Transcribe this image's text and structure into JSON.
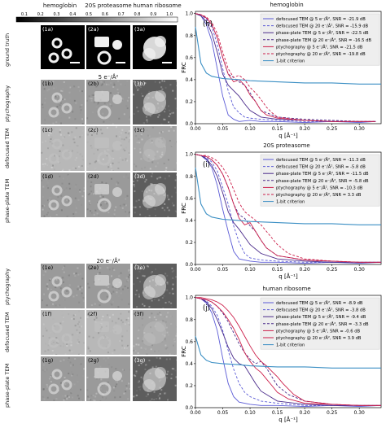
{
  "columns": [
    "hemoglobin",
    "20S proteasome",
    "human ribosome"
  ],
  "scale_ticks": [
    "0.1",
    "0.2",
    "0.3",
    "0.4",
    "0.5",
    "0.6",
    "0.7",
    "0.8",
    "0.9",
    "1.0"
  ],
  "row_labels": {
    "ground_truth": "ground truth",
    "ptychography": "ptychography",
    "defocused": "defocused TEM",
    "phaseplate": "phase-plate TEM"
  },
  "doses": [
    "5  e⁻/Å²",
    "20 e⁻/Å²"
  ],
  "tiles": {
    "gt": [
      "(1a)",
      "(2a)",
      "(3a)"
    ],
    "row_b": [
      "(1b)",
      "(2b)",
      "(3b)"
    ],
    "row_c": [
      "(1c)",
      "(2c)",
      "(3c)"
    ],
    "row_d": [
      "(1d)",
      "(2d)",
      "(3d)"
    ],
    "row_e": [
      "(1e)",
      "(2e)",
      "(3e)"
    ],
    "row_f": [
      "(1f)",
      "(2f)",
      "(3f)"
    ],
    "row_g": [
      "(1g)",
      "(2g)",
      "(3g)"
    ]
  },
  "axis": {
    "ylabel": "FRC",
    "xlabel": "q [Å⁻¹]",
    "xticks": [
      "0.00",
      "0.05",
      "0.10",
      "0.15",
      "0.20",
      "0.25",
      "0.30"
    ],
    "yticks": [
      "0.0",
      "0.2",
      "0.4",
      "0.6",
      "0.8",
      "1.0"
    ]
  },
  "colors": {
    "defocused": "#5b5bd6",
    "phaseplate": "#4a2a8a",
    "ptychography": "#cc1f4a",
    "criterion": "#3b8fc4"
  },
  "chart_data": [
    {
      "type": "line",
      "title": "hemoglobin",
      "panel_label": "(h)",
      "xlabel": "q [Å⁻¹]",
      "ylabel": "FRC",
      "xlim": [
        0,
        0.34
      ],
      "ylim": [
        0,
        1.02
      ],
      "legend": "top-right",
      "grid": false,
      "series": [
        {
          "name": "defocused TEM @ 5  e⁻/Å², SNR = -21.9 dB",
          "style": "defocused",
          "dash": "solid",
          "x": [
            0,
            0.01,
            0.02,
            0.03,
            0.04,
            0.05,
            0.06,
            0.07,
            0.08,
            0.1,
            0.12,
            0.15,
            0.2,
            0.25,
            0.3,
            0.33
          ],
          "y": [
            1.0,
            0.98,
            0.9,
            0.75,
            0.5,
            0.25,
            0.08,
            0.04,
            0.02,
            0.03,
            0.02,
            0.02,
            0.01,
            0.02,
            0.01,
            0.02
          ]
        },
        {
          "name": "defocused TEM @ 20 e⁻/Å², SNR = -15.9 dB",
          "style": "defocused",
          "dash": "dashed",
          "x": [
            0,
            0.01,
            0.02,
            0.03,
            0.04,
            0.05,
            0.06,
            0.07,
            0.08,
            0.09,
            0.1,
            0.12,
            0.15,
            0.2,
            0.25,
            0.3,
            0.33
          ],
          "y": [
            1.0,
            0.99,
            0.95,
            0.88,
            0.72,
            0.5,
            0.3,
            0.15,
            0.1,
            0.06,
            0.05,
            0.04,
            0.03,
            0.02,
            0.02,
            0.02,
            0.02
          ]
        },
        {
          "name": "phase-plate TEM @ 5  e⁻/Å², SNR = -22.5 dB",
          "style": "phaseplate",
          "dash": "solid",
          "x": [
            0,
            0.01,
            0.02,
            0.03,
            0.04,
            0.05,
            0.06,
            0.07,
            0.08,
            0.09,
            0.1,
            0.12,
            0.15,
            0.2,
            0.25,
            0.3,
            0.33
          ],
          "y": [
            1.0,
            0.98,
            0.93,
            0.82,
            0.65,
            0.45,
            0.35,
            0.3,
            0.25,
            0.18,
            0.12,
            0.06,
            0.04,
            0.03,
            0.02,
            0.02,
            0.02
          ]
        },
        {
          "name": "phase-plate TEM @ 20 e⁻/Å², SNR = -16.5 dB",
          "style": "phaseplate",
          "dash": "dashed",
          "x": [
            0,
            0.01,
            0.02,
            0.03,
            0.04,
            0.05,
            0.06,
            0.07,
            0.08,
            0.09,
            0.1,
            0.11,
            0.12,
            0.15,
            0.2,
            0.25,
            0.3,
            0.33
          ],
          "y": [
            1.0,
            0.99,
            0.96,
            0.9,
            0.78,
            0.6,
            0.45,
            0.42,
            0.38,
            0.35,
            0.28,
            0.2,
            0.12,
            0.06,
            0.04,
            0.03,
            0.02,
            0.02
          ]
        },
        {
          "name": "ptychography @ 5  e⁻/Å², SNR = -21.5 dB",
          "style": "ptychography",
          "dash": "solid",
          "x": [
            0,
            0.01,
            0.02,
            0.03,
            0.04,
            0.05,
            0.06,
            0.07,
            0.08,
            0.09,
            0.1,
            0.11,
            0.12,
            0.13,
            0.15,
            0.2,
            0.25,
            0.3,
            0.33
          ],
          "y": [
            1.0,
            0.99,
            0.96,
            0.9,
            0.78,
            0.6,
            0.45,
            0.38,
            0.4,
            0.35,
            0.26,
            0.2,
            0.12,
            0.08,
            0.05,
            0.03,
            0.02,
            0.02,
            0.02
          ]
        },
        {
          "name": "ptychography @ 20 e⁻/Å², SNR = -19.8 dB",
          "style": "ptychography",
          "dash": "dashed",
          "x": [
            0,
            0.01,
            0.02,
            0.03,
            0.04,
            0.05,
            0.06,
            0.07,
            0.08,
            0.09,
            0.1,
            0.11,
            0.12,
            0.13,
            0.14,
            0.15,
            0.2,
            0.25,
            0.3,
            0.33
          ],
          "y": [
            1.0,
            0.99,
            0.97,
            0.92,
            0.82,
            0.65,
            0.5,
            0.42,
            0.44,
            0.4,
            0.33,
            0.28,
            0.22,
            0.15,
            0.1,
            0.06,
            0.03,
            0.02,
            0.02,
            0.02
          ]
        },
        {
          "name": "1-bit criterion",
          "style": "criterion",
          "dash": "solid",
          "x": [
            0,
            0.01,
            0.02,
            0.03,
            0.05,
            0.08,
            0.1,
            0.15,
            0.2,
            0.25,
            0.3,
            0.34
          ],
          "y": [
            0.88,
            0.55,
            0.46,
            0.43,
            0.41,
            0.4,
            0.39,
            0.38,
            0.37,
            0.37,
            0.36,
            0.36
          ]
        }
      ]
    },
    {
      "type": "line",
      "title": "20S proteasome",
      "panel_label": "(i)",
      "xlabel": "q [Å⁻¹]",
      "ylabel": "FRC",
      "xlim": [
        0,
        0.34
      ],
      "ylim": [
        0,
        1.02
      ],
      "legend": "top-right",
      "grid": false,
      "series": [
        {
          "name": "defocused TEM @ 5  e⁻/Å², SNR = -11.3 dB",
          "style": "defocused",
          "dash": "solid",
          "x": [
            0,
            0.01,
            0.02,
            0.03,
            0.04,
            0.05,
            0.06,
            0.07,
            0.08,
            0.1,
            0.12,
            0.15,
            0.2,
            0.25,
            0.3,
            0.34
          ],
          "y": [
            1.0,
            0.99,
            0.95,
            0.88,
            0.72,
            0.5,
            0.3,
            0.12,
            0.05,
            0.03,
            0.02,
            0.02,
            0.01,
            0.02,
            0.01,
            0.02
          ]
        },
        {
          "name": "defocused TEM @ 20 e⁻/Å², SNR = -5.8 dB",
          "style": "defocused",
          "dash": "dashed",
          "x": [
            0,
            0.01,
            0.02,
            0.03,
            0.04,
            0.05,
            0.06,
            0.07,
            0.08,
            0.09,
            0.1,
            0.12,
            0.15,
            0.2,
            0.25,
            0.3,
            0.34
          ],
          "y": [
            1.0,
            0.99,
            0.97,
            0.93,
            0.85,
            0.7,
            0.55,
            0.35,
            0.2,
            0.1,
            0.06,
            0.04,
            0.03,
            0.02,
            0.02,
            0.02,
            0.02
          ]
        },
        {
          "name": "phase-plate TEM @ 5  e⁻/Å², SNR = -11.5 dB",
          "style": "phaseplate",
          "dash": "solid",
          "x": [
            0,
            0.01,
            0.02,
            0.03,
            0.04,
            0.05,
            0.06,
            0.07,
            0.08,
            0.09,
            0.1,
            0.12,
            0.15,
            0.2,
            0.25,
            0.3,
            0.34
          ],
          "y": [
            1.0,
            0.99,
            0.96,
            0.9,
            0.8,
            0.65,
            0.48,
            0.38,
            0.32,
            0.25,
            0.18,
            0.1,
            0.05,
            0.03,
            0.02,
            0.02,
            0.02
          ]
        },
        {
          "name": "phase-plate TEM @ 20 e⁻/Å², SNR = -5.8 dB",
          "style": "phaseplate",
          "dash": "dashed",
          "x": [
            0,
            0.01,
            0.02,
            0.03,
            0.04,
            0.05,
            0.06,
            0.07,
            0.08,
            0.09,
            0.1,
            0.11,
            0.12,
            0.13,
            0.15,
            0.2,
            0.25,
            0.3,
            0.34
          ],
          "y": [
            1.0,
            0.99,
            0.98,
            0.95,
            0.9,
            0.82,
            0.7,
            0.55,
            0.45,
            0.42,
            0.35,
            0.3,
            0.22,
            0.15,
            0.08,
            0.04,
            0.03,
            0.02,
            0.02
          ]
        },
        {
          "name": "ptychography @ 5  e⁻/Å², SNR = -10.3 dB",
          "style": "ptychography",
          "dash": "solid",
          "x": [
            0,
            0.01,
            0.02,
            0.03,
            0.04,
            0.05,
            0.06,
            0.07,
            0.08,
            0.09,
            0.1,
            0.11,
            0.12,
            0.13,
            0.15,
            0.2,
            0.25,
            0.3,
            0.34
          ],
          "y": [
            1.0,
            0.99,
            0.98,
            0.95,
            0.9,
            0.82,
            0.7,
            0.55,
            0.42,
            0.36,
            0.38,
            0.3,
            0.22,
            0.15,
            0.08,
            0.04,
            0.03,
            0.02,
            0.02
          ]
        },
        {
          "name": "ptychography @ 20 e⁻/Å², SNR = 3.3 dB",
          "style": "ptychography",
          "dash": "dashed",
          "x": [
            0,
            0.01,
            0.02,
            0.03,
            0.04,
            0.05,
            0.06,
            0.07,
            0.08,
            0.09,
            0.1,
            0.11,
            0.12,
            0.13,
            0.14,
            0.15,
            0.17,
            0.2,
            0.25,
            0.3,
            0.34
          ],
          "y": [
            1.0,
            0.99,
            0.99,
            0.97,
            0.94,
            0.88,
            0.8,
            0.68,
            0.56,
            0.48,
            0.44,
            0.4,
            0.36,
            0.3,
            0.24,
            0.18,
            0.1,
            0.05,
            0.03,
            0.02,
            0.02
          ]
        },
        {
          "name": "1-bit criterion",
          "style": "criterion",
          "dash": "solid",
          "x": [
            0,
            0.01,
            0.02,
            0.03,
            0.05,
            0.08,
            0.1,
            0.15,
            0.2,
            0.25,
            0.3,
            0.34
          ],
          "y": [
            0.88,
            0.55,
            0.46,
            0.43,
            0.41,
            0.4,
            0.39,
            0.38,
            0.37,
            0.37,
            0.36,
            0.36
          ]
        }
      ]
    },
    {
      "type": "line",
      "title": "human ribosome",
      "panel_label": "(j)",
      "xlabel": "q [Å⁻¹]",
      "ylabel": "FRC",
      "xlim": [
        0,
        0.34
      ],
      "ylim": [
        0,
        1.02
      ],
      "legend": "top-right",
      "grid": false,
      "series": [
        {
          "name": "defocused TEM @ 5  e⁻/Å², SNR = -8.9 dB",
          "style": "defocused",
          "dash": "solid",
          "x": [
            0,
            0.01,
            0.02,
            0.03,
            0.04,
            0.05,
            0.06,
            0.07,
            0.08,
            0.1,
            0.12,
            0.15,
            0.2,
            0.25,
            0.3,
            0.34
          ],
          "y": [
            1.0,
            0.99,
            0.95,
            0.86,
            0.7,
            0.45,
            0.22,
            0.1,
            0.05,
            0.03,
            0.02,
            0.02,
            0.01,
            0.02,
            0.01,
            0.02
          ]
        },
        {
          "name": "defocused TEM @ 20 e⁻/Å², SNR = -3.8 dB",
          "style": "defocused",
          "dash": "dashed",
          "x": [
            0,
            0.01,
            0.02,
            0.03,
            0.04,
            0.05,
            0.06,
            0.07,
            0.08,
            0.09,
            0.1,
            0.12,
            0.15,
            0.2,
            0.25,
            0.3,
            0.34
          ],
          "y": [
            1.0,
            0.99,
            0.97,
            0.92,
            0.84,
            0.7,
            0.52,
            0.35,
            0.22,
            0.14,
            0.1,
            0.06,
            0.04,
            0.02,
            0.02,
            0.02,
            0.02
          ]
        },
        {
          "name": "phase-plate TEM @ 5  e⁻/Å², SNR = -9.4 dB",
          "style": "phaseplate",
          "dash": "solid",
          "x": [
            0,
            0.01,
            0.02,
            0.03,
            0.04,
            0.05,
            0.06,
            0.07,
            0.08,
            0.09,
            0.1,
            0.11,
            0.12,
            0.15,
            0.2,
            0.25,
            0.3,
            0.34
          ],
          "y": [
            1.0,
            0.99,
            0.96,
            0.9,
            0.8,
            0.68,
            0.55,
            0.45,
            0.4,
            0.38,
            0.3,
            0.22,
            0.15,
            0.06,
            0.03,
            0.02,
            0.02,
            0.02
          ]
        },
        {
          "name": "phase-plate TEM @ 20 e⁻/Å², SNR = -3.3 dB",
          "style": "phaseplate",
          "dash": "dashed",
          "x": [
            0,
            0.01,
            0.02,
            0.03,
            0.04,
            0.05,
            0.06,
            0.07,
            0.08,
            0.09,
            0.1,
            0.11,
            0.12,
            0.13,
            0.14,
            0.15,
            0.17,
            0.2,
            0.25,
            0.3,
            0.34
          ],
          "y": [
            1.0,
            0.99,
            0.98,
            0.96,
            0.92,
            0.86,
            0.78,
            0.68,
            0.58,
            0.5,
            0.44,
            0.4,
            0.42,
            0.36,
            0.28,
            0.2,
            0.12,
            0.06,
            0.03,
            0.02,
            0.02
          ]
        },
        {
          "name": "ptychography @ 5  e⁻/Å², SNR = -0.6 dB",
          "style": "ptychography",
          "dash": "solid",
          "x": [
            0,
            0.01,
            0.02,
            0.03,
            0.04,
            0.05,
            0.06,
            0.07,
            0.08,
            0.09,
            0.1,
            0.11,
            0.12,
            0.13,
            0.14,
            0.15,
            0.17,
            0.2,
            0.25,
            0.3,
            0.34
          ],
          "y": [
            1.0,
            0.99,
            0.98,
            0.96,
            0.92,
            0.87,
            0.8,
            0.72,
            0.62,
            0.5,
            0.42,
            0.36,
            0.32,
            0.26,
            0.2,
            0.14,
            0.08,
            0.04,
            0.03,
            0.02,
            0.02
          ]
        },
        {
          "name": "ptychography @ 20 e⁻/Å², SNR = 3.9 dB",
          "style": "ptychography",
          "dash": "solid",
          "x": [
            0,
            0.01,
            0.02,
            0.03,
            0.04,
            0.05,
            0.06,
            0.07,
            0.08,
            0.09,
            0.1,
            0.11,
            0.12,
            0.13,
            0.14,
            0.15,
            0.16,
            0.18,
            0.2,
            0.25,
            0.3,
            0.34
          ],
          "y": [
            1.0,
            1.0,
            0.99,
            0.98,
            0.96,
            0.93,
            0.88,
            0.82,
            0.74,
            0.65,
            0.56,
            0.48,
            0.42,
            0.38,
            0.33,
            0.28,
            0.22,
            0.12,
            0.06,
            0.03,
            0.02,
            0.02
          ]
        },
        {
          "name": "1-bit criterion",
          "style": "criterion",
          "dash": "solid",
          "x": [
            0,
            0.01,
            0.02,
            0.03,
            0.05,
            0.08,
            0.1,
            0.15,
            0.2,
            0.25,
            0.3,
            0.34
          ],
          "y": [
            0.65,
            0.48,
            0.43,
            0.41,
            0.4,
            0.39,
            0.38,
            0.37,
            0.37,
            0.36,
            0.36,
            0.36
          ]
        }
      ]
    }
  ]
}
